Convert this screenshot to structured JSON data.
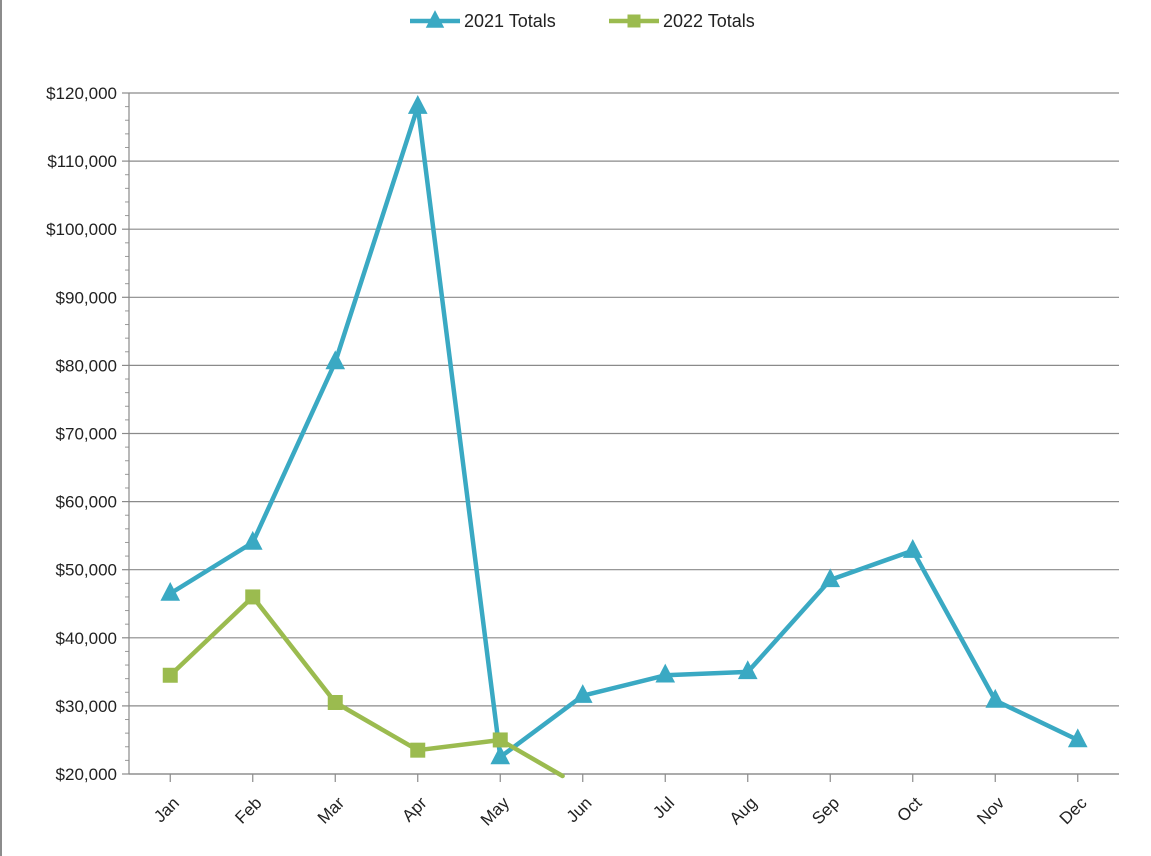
{
  "chart_data": {
    "type": "line",
    "title": "",
    "xlabel": "",
    "ylabel": "",
    "categories": [
      "Jan",
      "Feb",
      "Mar",
      "Apr",
      "May",
      "Jun",
      "Jul",
      "Aug",
      "Sep",
      "Oct",
      "Nov",
      "Dec"
    ],
    "ylim": [
      20000,
      120000
    ],
    "yticks": [
      20000,
      30000,
      40000,
      50000,
      60000,
      70000,
      80000,
      90000,
      100000,
      110000,
      120000
    ],
    "ytick_labels": [
      "$20,000",
      "$30,000",
      "$40,000",
      "$50,000",
      "$60,000",
      "$70,000",
      "$80,000",
      "$90,000",
      "$100,000",
      "$110,000",
      "$120,000"
    ],
    "grid": true,
    "legend_position": "top",
    "series": [
      {
        "name": "2021 Totals",
        "color": "#3aa9c3",
        "marker": "triangle",
        "values": [
          46500,
          54000,
          80500,
          118000,
          22500,
          31500,
          34500,
          35000,
          48500,
          52800,
          30800,
          25000
        ]
      },
      {
        "name": "2022 Totals",
        "color": "#9bbb4f",
        "marker": "square",
        "values": [
          34500,
          46000,
          30500,
          23500,
          25000,
          null,
          null,
          null,
          null,
          null,
          null,
          null
        ],
        "trailing_drop_to": 18000
      }
    ]
  }
}
